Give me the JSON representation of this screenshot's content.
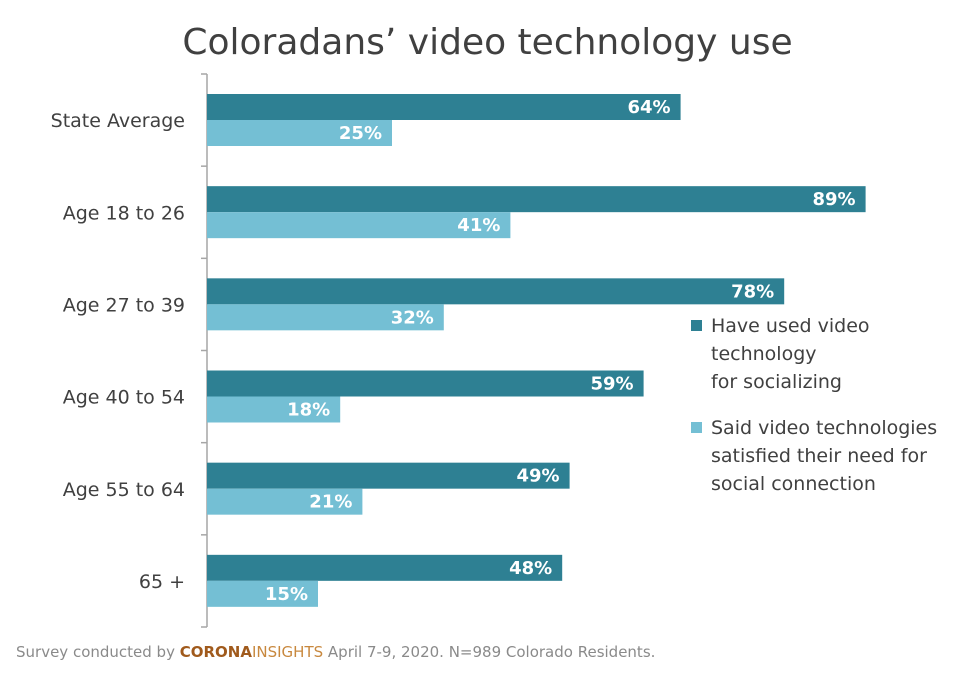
{
  "chart_data": {
    "type": "bar",
    "orientation": "horizontal",
    "title": "Coloradans’ video technology use",
    "categories": [
      "State Average",
      "Age 18 to 26",
      "Age 27 to 39",
      "Age 40 to 54",
      "Age 55 to 64",
      "65 +"
    ],
    "series": [
      {
        "name": "Have used video technology for socializing",
        "color": "#2e8093",
        "values": [
          64,
          89,
          78,
          59,
          49,
          48
        ],
        "labels": [
          "64%",
          "89%",
          "78%",
          "59%",
          "49%",
          "48%"
        ]
      },
      {
        "name": "Said video technologies satisfied their need for social connection",
        "color": "#74bfd4",
        "values": [
          25,
          41,
          32,
          18,
          21,
          15
        ],
        "labels": [
          "25%",
          "41%",
          "32%",
          "18%",
          "21%",
          "15%"
        ]
      }
    ],
    "xlim": [
      0,
      100
    ],
    "grid": false,
    "legend_position": "right"
  },
  "legend": {
    "series1_line1": "Have used video technology",
    "series1_line2": "for socializing",
    "series2_line1": "Said video technologies",
    "series2_line2": "satisfied their need for",
    "series2_line3": "social connection"
  },
  "footer": {
    "prefix": "Survey conducted by ",
    "brand1": "CORONA",
    "brand2": "INSIGHTS",
    "suffix": " April 7-9, 2020. N=989 Colorado Residents."
  }
}
